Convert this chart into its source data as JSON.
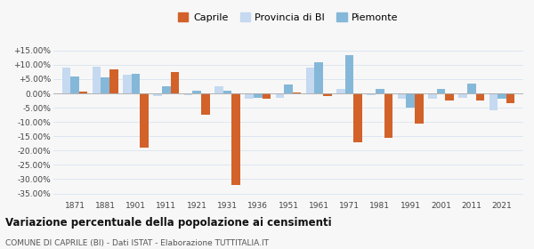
{
  "years": [
    1871,
    1881,
    1901,
    1911,
    1921,
    1931,
    1936,
    1951,
    1961,
    1971,
    1981,
    1991,
    2001,
    2011,
    2021
  ],
  "caprile": [
    0.5,
    8.5,
    -19.0,
    7.5,
    -7.5,
    -32.0,
    -2.0,
    0.3,
    -1.0,
    -17.0,
    -15.5,
    -10.5,
    -2.5,
    -2.5,
    -3.5
  ],
  "provincia_bi": [
    9.0,
    9.5,
    6.5,
    -1.0,
    -0.5,
    2.5,
    -2.0,
    -1.5,
    9.0,
    1.5,
    -0.5,
    -2.0,
    -2.0,
    -1.5,
    -6.0
  ],
  "piemonte": [
    6.0,
    5.5,
    7.0,
    2.5,
    1.0,
    1.0,
    -1.5,
    3.0,
    11.0,
    13.5,
    1.5,
    -5.0,
    1.5,
    3.5,
    -2.0
  ],
  "color_caprile": "#d2622a",
  "color_provincia": "#c5d9f0",
  "color_piemonte": "#85b8d8",
  "title": "Variazione percentuale della popolazione ai censimenti",
  "subtitle": "COMUNE DI CAPRILE (BI) - Dati ISTAT - Elaborazione TUTTITALIA.IT",
  "ylim": [
    -37,
    17
  ],
  "yticks": [
    -35.0,
    -30.0,
    -25.0,
    -20.0,
    -15.0,
    -10.0,
    -5.0,
    0.0,
    5.0,
    10.0,
    15.0
  ],
  "ytick_labels": [
    "-35.00%",
    "-30.00%",
    "-25.00%",
    "-20.00%",
    "-15.00%",
    "-10.00%",
    "-5.00%",
    "0.00%",
    "+5.00%",
    "+10.00%",
    "+15.00%"
  ],
  "bar_width": 0.28,
  "bg_color": "#f7f7f7",
  "grid_color": "#dce6f1"
}
